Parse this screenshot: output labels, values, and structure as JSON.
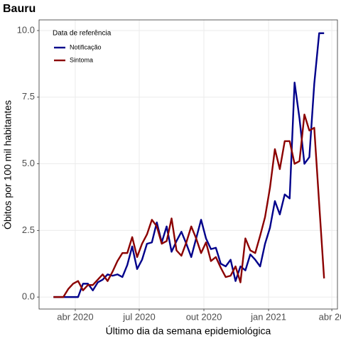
{
  "chart_data": {
    "type": "line",
    "title": "Bauru",
    "x_label": "Último dia da semana epidemiológica",
    "y_label": "Óbitos por 100 mil habitantes",
    "legend_title": "Data de referência",
    "legend_position": "top-left",
    "grid": true,
    "x": [
      60,
      67,
      74,
      81,
      88,
      95,
      102,
      109,
      116,
      123,
      130,
      137,
      144,
      151,
      158,
      165,
      172,
      179,
      186,
      193,
      200,
      207,
      214,
      221,
      228,
      235,
      242,
      249,
      256,
      263,
      270,
      277,
      284,
      291,
      298,
      305,
      312,
      319,
      326,
      333,
      340,
      347,
      354,
      361,
      368,
      375,
      382,
      389,
      396,
      403,
      410,
      417,
      424,
      431,
      438,
      445
    ],
    "series": [
      {
        "name": "Notificação",
        "color": "#00008b",
        "values": [
          0,
          0,
          0,
          0,
          0,
          0,
          0.5,
          0.5,
          0.25,
          0.55,
          0.65,
          0.85,
          0.8,
          0.85,
          0.75,
          1.2,
          1.9,
          1.05,
          1.4,
          2.0,
          2.05,
          2.8,
          2.05,
          2.65,
          1.7,
          2.1,
          2.45,
          2.0,
          1.5,
          2.2,
          2.9,
          2.2,
          1.8,
          1.85,
          1.25,
          1.15,
          1.4,
          0.6,
          1.15,
          1.0,
          1.6,
          1.4,
          1.15,
          2.0,
          2.6,
          3.6,
          3.1,
          3.85,
          3.7,
          8.05,
          6.7,
          5.0,
          5.25,
          8.0,
          9.9,
          9.9
        ]
      },
      {
        "name": "Sintoma",
        "color": "#8b0000",
        "values": [
          0,
          0,
          0,
          0.3,
          0.5,
          0.6,
          0.25,
          0.45,
          0.45,
          0.65,
          0.85,
          0.6,
          0.95,
          1.35,
          1.65,
          1.65,
          2.25,
          1.5,
          2.0,
          2.35,
          2.9,
          2.65,
          2.0,
          2.1,
          2.95,
          1.75,
          1.55,
          2.05,
          2.65,
          2.2,
          1.65,
          2.05,
          1.35,
          1.5,
          1.1,
          0.75,
          0.8,
          1.15,
          0.55,
          2.2,
          1.75,
          1.65,
          2.3,
          3.0,
          4.1,
          5.55,
          4.8,
          5.85,
          5.85,
          5.0,
          5.1,
          6.85,
          6.25,
          6.35,
          3.5,
          0.7
        ]
      }
    ],
    "xlim": [
      39.5,
      464
    ],
    "xticks": [
      {
        "value": 91,
        "label": "abr 2020"
      },
      {
        "value": 182,
        "label": "jul 2020"
      },
      {
        "value": 274,
        "label": "out 2020"
      },
      {
        "value": 366,
        "label": "jan 2021"
      },
      {
        "value": 456,
        "label": "abr 20"
      }
    ],
    "ylim": [
      -0.45,
      10.4
    ],
    "yticks": [
      {
        "value": 0,
        "label": "0.0"
      },
      {
        "value": 2.5,
        "label": "2.5"
      },
      {
        "value": 5,
        "label": "5.0"
      },
      {
        "value": 7.5,
        "label": "7.5"
      },
      {
        "value": 10,
        "label": "10.0"
      }
    ]
  }
}
